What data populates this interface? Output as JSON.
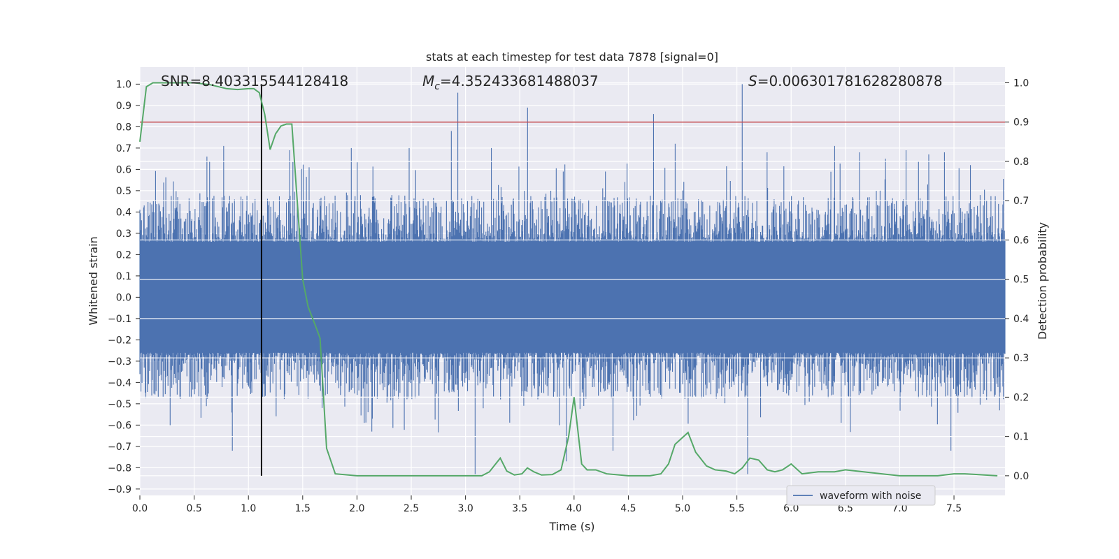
{
  "chart_data": {
    "type": "line",
    "title": "stats at each timestep for test data 7878 [signal=0]",
    "xlabel": "Time (s)",
    "ylabel_left": "Whitened strain",
    "ylabel_right": "Detection probability",
    "xlim": [
      0,
      7.97
    ],
    "ylim_left": [
      -0.93,
      1.08
    ],
    "ylim_right": [
      -0.05,
      1.04
    ],
    "x_ticks": [
      "0.0",
      "0.5",
      "1.0",
      "1.5",
      "2.0",
      "2.5",
      "3.0",
      "3.5",
      "4.0",
      "4.5",
      "5.0",
      "5.5",
      "6.0",
      "6.5",
      "7.0",
      "7.5"
    ],
    "y_left_ticks": [
      "-0.9",
      "-0.8",
      "-0.7",
      "-0.6",
      "-0.5",
      "-0.4",
      "-0.3",
      "-0.2",
      "-0.1",
      "0.0",
      "0.1",
      "0.2",
      "0.3",
      "0.4",
      "0.5",
      "0.6",
      "0.7",
      "0.8",
      "0.9",
      "1.0"
    ],
    "y_right_ticks": [
      "0.0",
      "0.1",
      "0.2",
      "0.3",
      "0.4",
      "0.5",
      "0.6",
      "0.7",
      "0.8",
      "0.9",
      "1.0"
    ],
    "grid": true,
    "legend_placement": "lower-right",
    "annotations": {
      "snr": "SNR=8.403315544128418",
      "mc": "=4.352433681488037",
      "mc_symbol": "M",
      "mc_sub": "c",
      "s": "=0.006301781628280878",
      "s_symbol": "S"
    },
    "threshold": {
      "value": 0.9,
      "color": "#c44e52"
    },
    "vertical_marker": {
      "x": 1.12,
      "color": "#000000"
    },
    "series": [
      {
        "name": "waveform with noise",
        "axis": "left",
        "color": "#4c72b0",
        "envelope_note": "dense noise, typical amplitude ~0.27, spikes up to ~1.0",
        "spikes": [
          [
            0.62,
            0.66
          ],
          [
            0.77,
            0.71
          ],
          [
            0.85,
            -0.72
          ],
          [
            1.38,
            0.69
          ],
          [
            1.56,
            0.61
          ],
          [
            1.95,
            0.7
          ],
          [
            2.48,
            0.7
          ],
          [
            2.87,
            0.78
          ],
          [
            2.93,
            0.96
          ],
          [
            3.09,
            -0.83
          ],
          [
            3.24,
            0.7
          ],
          [
            3.57,
            0.89
          ],
          [
            3.9,
            0.59
          ],
          [
            3.93,
            -0.77
          ],
          [
            4.36,
            -0.72
          ],
          [
            4.73,
            0.86
          ],
          [
            4.93,
            0.72
          ],
          [
            5.55,
            1.0
          ],
          [
            5.6,
            -0.83
          ],
          [
            5.78,
            0.68
          ],
          [
            6.4,
            0.71
          ],
          [
            6.63,
            0.68
          ],
          [
            6.87,
            0.65
          ],
          [
            7.06,
            0.69
          ],
          [
            7.27,
            0.67
          ],
          [
            7.41,
            0.68
          ],
          [
            7.47,
            -0.72
          ],
          [
            7.65,
            0.62
          ]
        ]
      },
      {
        "name": "detection probability",
        "axis": "right",
        "color": "#55a868",
        "x": [
          0.0,
          0.03,
          0.06,
          0.12,
          0.25,
          0.5,
          0.65,
          0.8,
          0.9,
          1.0,
          1.05,
          1.1,
          1.15,
          1.2,
          1.25,
          1.3,
          1.35,
          1.4,
          1.5,
          1.55,
          1.62,
          1.66,
          1.72,
          1.8,
          2.0,
          2.5,
          3.0,
          3.15,
          3.22,
          3.32,
          3.38,
          3.45,
          3.52,
          3.57,
          3.63,
          3.7,
          3.8,
          3.88,
          3.95,
          4.0,
          4.07,
          4.12,
          4.2,
          4.3,
          4.5,
          4.7,
          4.8,
          4.87,
          4.93,
          5.05,
          5.12,
          5.22,
          5.3,
          5.4,
          5.48,
          5.55,
          5.62,
          5.7,
          5.78,
          5.85,
          5.92,
          6.0,
          6.1,
          6.25,
          6.4,
          6.5,
          7.0,
          7.35,
          7.5,
          7.6,
          7.9
        ],
        "y": [
          0.85,
          0.92,
          0.99,
          1.0,
          1.0,
          1.0,
          0.995,
          0.985,
          0.983,
          0.985,
          0.985,
          0.975,
          0.92,
          0.83,
          0.87,
          0.89,
          0.895,
          0.895,
          0.5,
          0.43,
          0.38,
          0.35,
          0.07,
          0.005,
          0.0,
          0.0,
          0.0,
          0.0,
          0.01,
          0.045,
          0.012,
          0.002,
          0.005,
          0.02,
          0.01,
          0.002,
          0.003,
          0.015,
          0.1,
          0.2,
          0.03,
          0.015,
          0.015,
          0.005,
          0.0,
          0.0,
          0.005,
          0.03,
          0.08,
          0.11,
          0.06,
          0.025,
          0.015,
          0.012,
          0.005,
          0.02,
          0.045,
          0.04,
          0.015,
          0.01,
          0.015,
          0.03,
          0.005,
          0.01,
          0.01,
          0.015,
          0.0,
          0.0,
          0.005,
          0.005,
          0.0
        ]
      }
    ]
  }
}
